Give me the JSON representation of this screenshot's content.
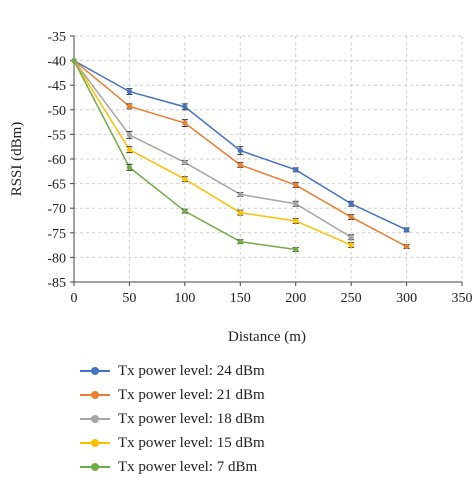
{
  "chart_data": {
    "type": "line",
    "xlabel": "Distance (m)",
    "ylabel": "RSSI (dBm)",
    "xlim": [
      0,
      350
    ],
    "ylim": [
      -85,
      -35
    ],
    "x_ticks": [
      "0",
      "50",
      "100",
      "150",
      "200",
      "250",
      "300",
      "350"
    ],
    "y_ticks": [
      "-35",
      "-40",
      "-45",
      "-50",
      "-55",
      "-60",
      "-65",
      "-70",
      "-75",
      "-80",
      "-85"
    ],
    "grid": true,
    "legend_position": "below",
    "series": [
      {
        "name": "Tx power level: 24 dBm",
        "color": "#4472c4",
        "x": [
          0,
          50,
          100,
          150,
          200,
          250,
          300
        ],
        "y": [
          -40,
          -46.3,
          -49.4,
          -58.3,
          -62.2,
          -69.1,
          -74.4
        ],
        "err": [
          0,
          0.6,
          0.6,
          0.8,
          0.4,
          0.5,
          0.4
        ]
      },
      {
        "name": "Tx power level: 21 dBm",
        "color": "#ed7d31",
        "x": [
          0,
          50,
          100,
          150,
          200,
          250,
          300
        ],
        "y": [
          -40,
          -49.3,
          -52.7,
          -61.2,
          -65.3,
          -71.8,
          -77.8
        ],
        "err": [
          0,
          0.5,
          0.7,
          0.5,
          0.5,
          0.5,
          0.4
        ]
      },
      {
        "name": "Tx power level: 18 dBm",
        "color": "#a5a5a5",
        "x": [
          0,
          50,
          100,
          150,
          200,
          250
        ],
        "y": [
          -40,
          -55.1,
          -60.7,
          -67.2,
          -69.1,
          -75.9
        ],
        "err": [
          0,
          0.7,
          0.4,
          0.4,
          0.5,
          0.5
        ]
      },
      {
        "name": "Tx power level: 15 dBm",
        "color": "#ffc000",
        "x": [
          0,
          50,
          100,
          150,
          200,
          250
        ],
        "y": [
          -40,
          -58.1,
          -64.1,
          -70.9,
          -72.6,
          -77.5
        ],
        "err": [
          0,
          0.6,
          0.5,
          0.5,
          0.5,
          0.5
        ]
      },
      {
        "name": "Tx power level: 7 dBm",
        "color": "#70ad47",
        "x": [
          0,
          50,
          100,
          150,
          200
        ],
        "y": [
          -40,
          -61.7,
          -70.6,
          -76.8,
          -78.4
        ],
        "err": [
          0,
          0.6,
          0.4,
          0.4,
          0.4
        ]
      }
    ]
  }
}
